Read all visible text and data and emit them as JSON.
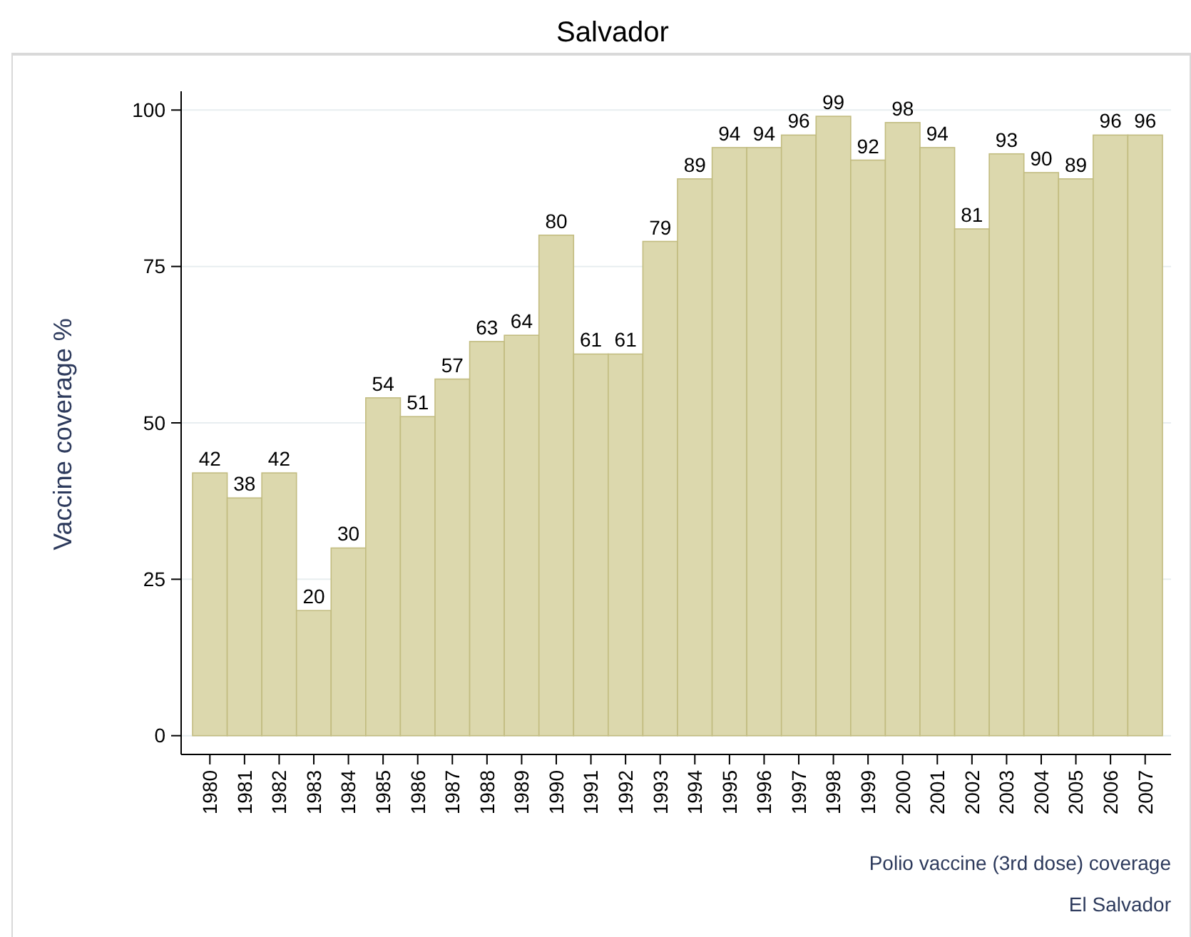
{
  "chart_data": {
    "type": "bar",
    "title": "Salvador",
    "ylabel": "Vaccine coverage %",
    "categories": [
      "1980",
      "1981",
      "1982",
      "1983",
      "1984",
      "1985",
      "1986",
      "1987",
      "1988",
      "1989",
      "1990",
      "1991",
      "1992",
      "1993",
      "1994",
      "1995",
      "1996",
      "1997",
      "1998",
      "1999",
      "2000",
      "2001",
      "2002",
      "2003",
      "2004",
      "2005",
      "2006",
      "2007"
    ],
    "values": [
      42,
      38,
      42,
      20,
      30,
      54,
      51,
      57,
      63,
      64,
      80,
      61,
      61,
      79,
      89,
      94,
      94,
      96,
      99,
      92,
      98,
      94,
      81,
      93,
      90,
      89,
      96,
      96
    ],
    "color": "#dcd8ad",
    "ylim": [
      -3,
      103
    ],
    "yticks": [
      0,
      25,
      50,
      75,
      100
    ],
    "grid": "y",
    "data_labels": true,
    "annotations": [
      "Polio vaccine (3rd dose) coverage",
      "El Salvador"
    ]
  }
}
